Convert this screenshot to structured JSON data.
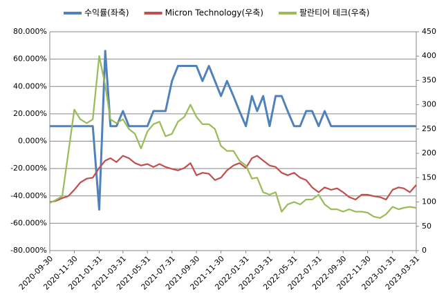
{
  "chart_data": {
    "type": "line",
    "x": [
      "2020-09-30",
      "2020-10-15",
      "2020-10-31",
      "2020-11-15",
      "2020-11-30",
      "2020-12-15",
      "2020-12-31",
      "2021-01-15",
      "2021-01-31",
      "2021-02-15",
      "2021-02-28",
      "2021-03-15",
      "2021-03-31",
      "2021-04-15",
      "2021-04-30",
      "2021-05-15",
      "2021-05-31",
      "2021-06-15",
      "2021-06-30",
      "2021-07-15",
      "2021-07-31",
      "2021-08-15",
      "2021-08-31",
      "2021-09-15",
      "2021-09-30",
      "2021-10-15",
      "2021-10-31",
      "2021-11-15",
      "2021-11-30",
      "2021-12-15",
      "2021-12-31",
      "2022-01-15",
      "2022-01-31",
      "2022-02-15",
      "2022-02-28",
      "2022-03-15",
      "2022-03-31",
      "2022-04-15",
      "2022-04-30",
      "2022-05-15",
      "2022-05-31",
      "2022-06-15",
      "2022-06-30",
      "2022-07-15",
      "2022-07-31",
      "2022-08-15",
      "2022-08-31",
      "2022-09-15",
      "2022-09-30",
      "2022-10-15",
      "2022-10-31",
      "2022-11-15",
      "2022-11-30",
      "2022-12-15",
      "2022-12-31",
      "2023-01-15",
      "2023-01-31",
      "2023-02-15",
      "2023-02-28",
      "2023-03-15",
      "2023-03-31"
    ],
    "series": [
      {
        "name": "수익률(좌축)",
        "color": "#4f81bd",
        "axis": "y",
        "values": [
          11,
          11,
          11,
          11,
          11,
          11,
          11,
          11,
          -50,
          66,
          11,
          11,
          22,
          11,
          11,
          11,
          11,
          22,
          22,
          22,
          44,
          55,
          55,
          55,
          55,
          44,
          55,
          44,
          33,
          44,
          33,
          22,
          11,
          33,
          22,
          33,
          11,
          33,
          33,
          22,
          11,
          11,
          22,
          22,
          11,
          22,
          11,
          11,
          11,
          11,
          11,
          11,
          11,
          11,
          11,
          11,
          11,
          11,
          11,
          11,
          11
        ]
      },
      {
        "name": "Micron Technology(우축)",
        "color": "#c0504d",
        "axis": "y2",
        "values": [
          100,
          102,
          108,
          112,
          125,
          140,
          148,
          150,
          170,
          185,
          190,
          182,
          195,
          190,
          180,
          175,
          178,
          172,
          178,
          172,
          168,
          165,
          170,
          180,
          155,
          160,
          158,
          145,
          150,
          165,
          175,
          180,
          170,
          190,
          195,
          185,
          175,
          172,
          160,
          155,
          160,
          150,
          145,
          130,
          120,
          130,
          125,
          128,
          120,
          110,
          105,
          115,
          115,
          112,
          110,
          105,
          125,
          130,
          128,
          120,
          135
        ]
      },
      {
        "name": "팔란티어 테크(우축)",
        "color": "#9bbb59",
        "axis": "y2",
        "values": [
          98,
          104,
          112,
          200,
          290,
          270,
          262,
          270,
          400,
          340,
          270,
          262,
          270,
          250,
          240,
          210,
          245,
          260,
          265,
          235,
          240,
          265,
          275,
          300,
          275,
          260,
          260,
          250,
          215,
          205,
          205,
          185,
          175,
          148,
          150,
          120,
          115,
          120,
          80,
          95,
          100,
          95,
          105,
          105,
          115,
          95,
          85,
          85,
          80,
          85,
          80,
          80,
          78,
          70,
          67,
          75,
          90,
          85,
          88,
          90,
          88
        ]
      }
    ],
    "xlim": [
      "2020-09-30",
      "2023-03-31"
    ],
    "xticks": [
      "2020-09-30",
      "2020-11-30",
      "2021-01-31",
      "2021-03-31",
      "2021-05-31",
      "2021-07-31",
      "2021-09-30",
      "2021-11-30",
      "2022-01-31",
      "2022-03-31",
      "2022-05-31",
      "2022-07-31",
      "2022-09-30",
      "2022-11-30",
      "2023-01-31",
      "2023-03-31"
    ],
    "ylim": [
      -80,
      80
    ],
    "yticks": [
      {
        "value": -80,
        "label": "-80.000%"
      },
      {
        "value": -60,
        "label": "-60.000%"
      },
      {
        "value": -40,
        "label": "-40.000%"
      },
      {
        "value": -20,
        "label": "-20.000%"
      },
      {
        "value": 0,
        "label": "0.000%"
      },
      {
        "value": 20,
        "label": "20.000%"
      },
      {
        "value": 40,
        "label": "40.000%"
      },
      {
        "value": 60,
        "label": "60.000%"
      },
      {
        "value": 80,
        "label": "80.000%"
      }
    ],
    "y2lim": [
      0,
      450
    ],
    "y2ticks": [
      0,
      50,
      100,
      150,
      200,
      250,
      300,
      350,
      400,
      450
    ],
    "grid": true,
    "legend": "top"
  }
}
